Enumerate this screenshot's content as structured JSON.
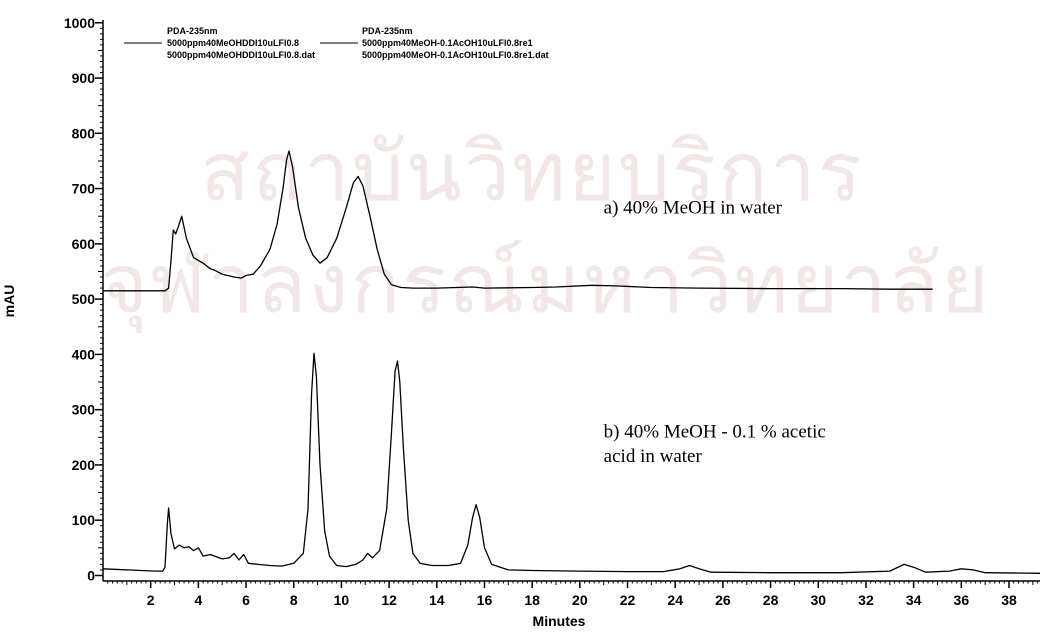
{
  "watermark": {
    "line1": "สถาบันวิทยบริการ",
    "line2": "จุฬาลงกรณ์มหาวิทยาลัย"
  },
  "chart_data": {
    "type": "line",
    "xlabel": "Minutes",
    "ylabel": "mAU",
    "xlim": [
      0,
      39.3
    ],
    "ylim": [
      -10,
      1005
    ],
    "xticks": [
      2,
      4,
      6,
      8,
      10,
      12,
      14,
      16,
      18,
      20,
      22,
      24,
      26,
      28,
      30,
      32,
      34,
      36,
      38
    ],
    "yticks": [
      0,
      100,
      200,
      300,
      400,
      500,
      600,
      700,
      800,
      900,
      1000
    ],
    "grid": false,
    "legend_position": "top-left",
    "legend": [
      {
        "line1": "PDA-235nm",
        "line2": "5000ppm40MeOHDDI10uLFl0.8",
        "line3": "5000ppm40MeOHDDI10uLFl0.8.dat"
      },
      {
        "line1": "PDA-235nm",
        "line2": "5000ppm40MeOH-0.1AcOH10uLFl0.8re1",
        "line3": "5000ppm40MeOH-0.1AcOH10uLFl0.8re1.dat"
      }
    ],
    "annotations": [
      {
        "text": "a) 40% MeOH in water",
        "x": 21,
        "y": 655
      },
      {
        "text": "b) 40% MeOH - 0.1 % acetic",
        "x": 21,
        "y": 250
      },
      {
        "text": "acid in water",
        "x": 21,
        "y": 205
      }
    ],
    "series": [
      {
        "color": "#000000",
        "points": [
          [
            0,
            515
          ],
          [
            2.6,
            515
          ],
          [
            2.75,
            520
          ],
          [
            2.85,
            570
          ],
          [
            2.95,
            625
          ],
          [
            3.05,
            618
          ],
          [
            3.15,
            630
          ],
          [
            3.3,
            650
          ],
          [
            3.5,
            610
          ],
          [
            3.8,
            575
          ],
          [
            4.2,
            565
          ],
          [
            4.5,
            555
          ],
          [
            4.7,
            552
          ],
          [
            5.0,
            545
          ],
          [
            5.5,
            540
          ],
          [
            5.8,
            538
          ],
          [
            6.0,
            543
          ],
          [
            6.3,
            545
          ],
          [
            6.6,
            560
          ],
          [
            7.0,
            590
          ],
          [
            7.3,
            635
          ],
          [
            7.55,
            700
          ],
          [
            7.7,
            752
          ],
          [
            7.8,
            768
          ],
          [
            7.95,
            740
          ],
          [
            8.2,
            665
          ],
          [
            8.5,
            610
          ],
          [
            8.8,
            580
          ],
          [
            9.1,
            565
          ],
          [
            9.4,
            575
          ],
          [
            9.8,
            610
          ],
          [
            10.2,
            665
          ],
          [
            10.5,
            710
          ],
          [
            10.7,
            722
          ],
          [
            10.9,
            705
          ],
          [
            11.2,
            650
          ],
          [
            11.5,
            590
          ],
          [
            11.8,
            545
          ],
          [
            12.1,
            526
          ],
          [
            12.5,
            521
          ],
          [
            13,
            520
          ],
          [
            14,
            520
          ],
          [
            15.5,
            522
          ],
          [
            16,
            520
          ],
          [
            18,
            521
          ],
          [
            19,
            522
          ],
          [
            20.5,
            525
          ],
          [
            21.5,
            524
          ],
          [
            23,
            521
          ],
          [
            25,
            520
          ],
          [
            28,
            519
          ],
          [
            31,
            519
          ],
          [
            33,
            518
          ],
          [
            34.8,
            518
          ]
        ]
      },
      {
        "color": "#000000",
        "points": [
          [
            0,
            12
          ],
          [
            1.6,
            9
          ],
          [
            2.2,
            8
          ],
          [
            2.5,
            8
          ],
          [
            2.6,
            15
          ],
          [
            2.7,
            95
          ],
          [
            2.75,
            122
          ],
          [
            2.85,
            75
          ],
          [
            3.0,
            48
          ],
          [
            3.2,
            55
          ],
          [
            3.4,
            50
          ],
          [
            3.6,
            52
          ],
          [
            3.8,
            45
          ],
          [
            4.0,
            50
          ],
          [
            4.2,
            35
          ],
          [
            4.5,
            38
          ],
          [
            5.0,
            30
          ],
          [
            5.3,
            32
          ],
          [
            5.5,
            40
          ],
          [
            5.7,
            28
          ],
          [
            5.9,
            38
          ],
          [
            6.1,
            22
          ],
          [
            6.5,
            20
          ],
          [
            7.0,
            18
          ],
          [
            7.5,
            17
          ],
          [
            8.0,
            22
          ],
          [
            8.4,
            40
          ],
          [
            8.6,
            120
          ],
          [
            8.75,
            330
          ],
          [
            8.85,
            402
          ],
          [
            8.95,
            360
          ],
          [
            9.1,
            200
          ],
          [
            9.3,
            80
          ],
          [
            9.5,
            35
          ],
          [
            9.8,
            18
          ],
          [
            10.2,
            16
          ],
          [
            10.6,
            20
          ],
          [
            10.9,
            28
          ],
          [
            11.1,
            40
          ],
          [
            11.3,
            32
          ],
          [
            11.6,
            45
          ],
          [
            11.9,
            120
          ],
          [
            12.1,
            260
          ],
          [
            12.25,
            370
          ],
          [
            12.35,
            388
          ],
          [
            12.45,
            350
          ],
          [
            12.6,
            230
          ],
          [
            12.8,
            100
          ],
          [
            13.0,
            40
          ],
          [
            13.3,
            22
          ],
          [
            13.8,
            18
          ],
          [
            14.5,
            18
          ],
          [
            15.0,
            22
          ],
          [
            15.3,
            55
          ],
          [
            15.5,
            105
          ],
          [
            15.65,
            128
          ],
          [
            15.8,
            105
          ],
          [
            16.0,
            50
          ],
          [
            16.3,
            20
          ],
          [
            17.0,
            10
          ],
          [
            18,
            9
          ],
          [
            20,
            8
          ],
          [
            22,
            7
          ],
          [
            23.5,
            7
          ],
          [
            24.2,
            12
          ],
          [
            24.6,
            18
          ],
          [
            25.0,
            12
          ],
          [
            25.5,
            6
          ],
          [
            28,
            5
          ],
          [
            31,
            5
          ],
          [
            33,
            8
          ],
          [
            33.6,
            20
          ],
          [
            34.0,
            15
          ],
          [
            34.5,
            6
          ],
          [
            35.5,
            8
          ],
          [
            36.0,
            12
          ],
          [
            36.5,
            10
          ],
          [
            37.0,
            5
          ],
          [
            39.3,
            4
          ]
        ]
      }
    ]
  }
}
